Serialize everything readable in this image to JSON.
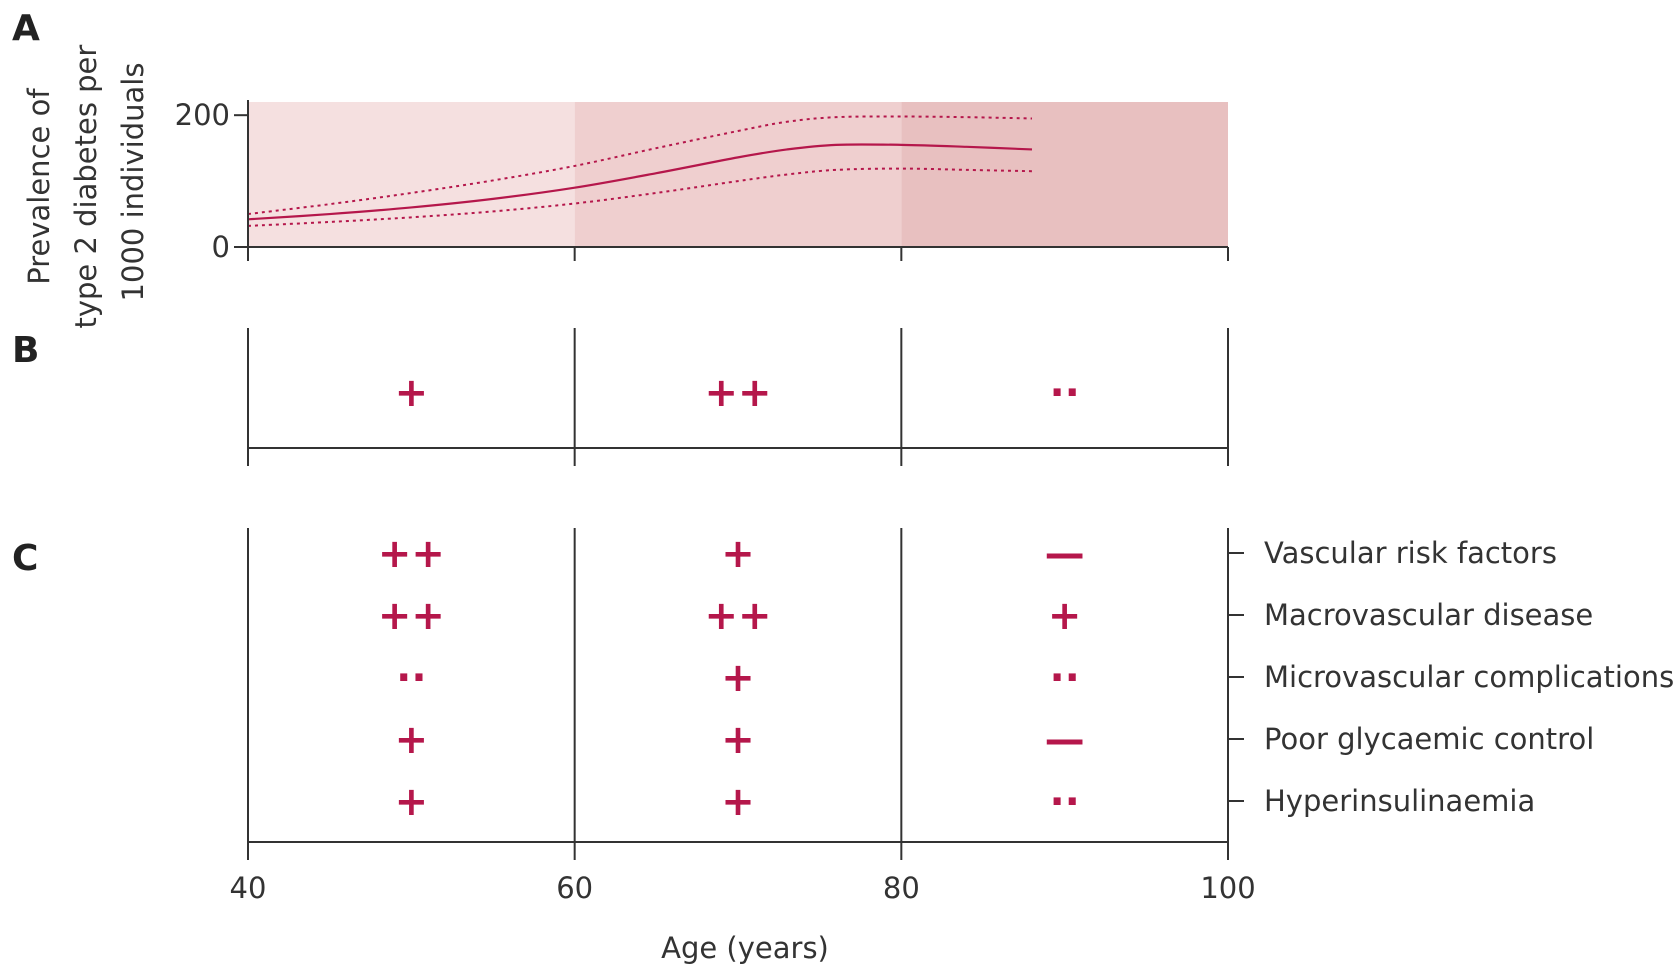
{
  "panels": {
    "a": "A",
    "b": "B",
    "c": "C"
  },
  "colors": {
    "accent": "#b5174b",
    "band_1": "#f5e0e0",
    "band_2": "#efcfcf",
    "band_3": "#e8c0c0",
    "axis": "#333333"
  },
  "chart_data": [
    {
      "panel": "A",
      "type": "line",
      "title": "",
      "xlabel": "",
      "ylabel": [
        "Prevalence of",
        "type 2 diabetes per",
        "1000 individuals"
      ],
      "xlim": [
        40,
        100
      ],
      "ylim": [
        0,
        220
      ],
      "x_ticks": [
        40,
        60,
        80,
        100
      ],
      "y_ticks": [
        0,
        200
      ],
      "y_tick_labels": [
        "0",
        "200"
      ],
      "shaded_bands": [
        [
          40,
          60
        ],
        [
          60,
          80
        ],
        [
          80,
          100
        ]
      ],
      "series": [
        {
          "style": "solid",
          "x": [
            40,
            45,
            50,
            55,
            60,
            65,
            70,
            73,
            76,
            80,
            84,
            88
          ],
          "y": [
            42,
            50,
            60,
            73,
            90,
            112,
            136,
            148,
            155,
            155,
            152,
            148
          ]
        },
        {
          "style": "dotted",
          "x": [
            40,
            45,
            50,
            55,
            60,
            65,
            70,
            73,
            76,
            80,
            84,
            88
          ],
          "y": [
            50,
            65,
            82,
            101,
            123,
            150,
            176,
            190,
            197,
            198,
            197,
            195
          ]
        },
        {
          "style": "dotted",
          "x": [
            40,
            45,
            50,
            55,
            60,
            65,
            70,
            73,
            76,
            80,
            84,
            88
          ],
          "y": [
            32,
            38,
            45,
            54,
            66,
            82,
            100,
            110,
            117,
            119,
            117,
            115
          ]
        }
      ]
    },
    {
      "panel": "B",
      "type": "table",
      "columns_x": [
        50,
        70,
        90
      ],
      "values": [
        "+",
        "++",
        "··"
      ]
    },
    {
      "panel": "C",
      "type": "table",
      "rows": [
        "Vascular risk factors",
        "Macrovascular disease",
        "Microvascular complications",
        "Poor glycaemic control",
        "Hyperinsulinaemia"
      ],
      "columns_x": [
        50,
        70,
        90
      ],
      "cells": [
        [
          "++",
          "+",
          "—"
        ],
        [
          "++",
          "++",
          "+"
        ],
        [
          "··",
          "+",
          "··"
        ],
        [
          "+",
          "+",
          "—"
        ],
        [
          "+",
          "+",
          "··"
        ]
      ],
      "x_ticks": [
        40,
        60,
        80,
        100
      ],
      "x_tick_labels": [
        "40",
        "60",
        "80",
        "100"
      ],
      "xlabel": "Age (years)"
    }
  ]
}
